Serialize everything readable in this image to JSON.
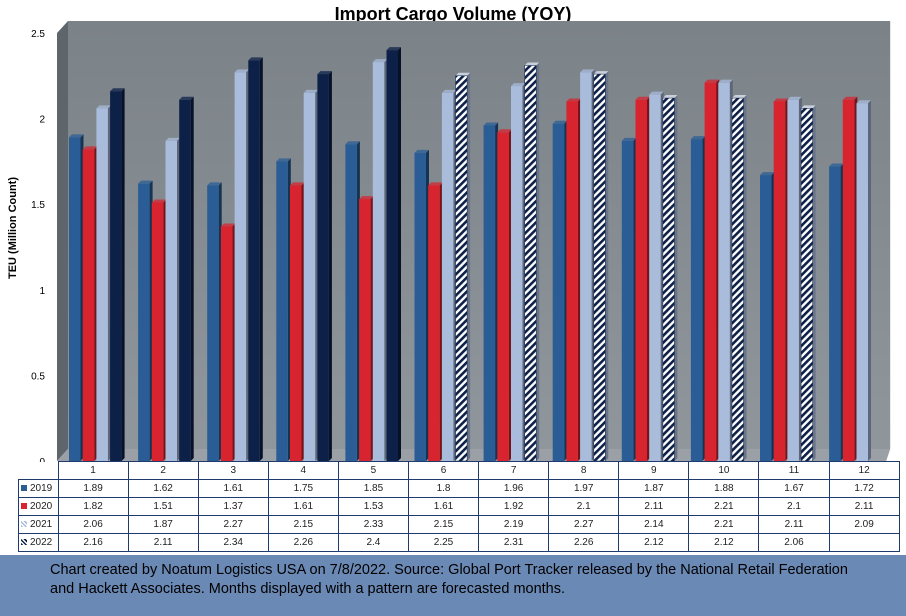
{
  "chart_data": {
    "type": "bar",
    "title": "Import Cargo Volume (YOY)",
    "ylabel": "TEU (Million Count)",
    "xlabel": "",
    "ylim": [
      0,
      2.5
    ],
    "yticks": [
      0,
      0.5,
      1,
      1.5,
      2,
      2.5
    ],
    "categories": [
      "1",
      "2",
      "3",
      "4",
      "5",
      "6",
      "7",
      "8",
      "9",
      "10",
      "11",
      "12"
    ],
    "series": [
      {
        "name": "2019",
        "color": "#2a5d95",
        "values": [
          1.89,
          1.62,
          1.61,
          1.75,
          1.85,
          1.8,
          1.96,
          1.97,
          1.87,
          1.88,
          1.67,
          1.72
        ],
        "forecast_from": null
      },
      {
        "name": "2020",
        "color": "#d7242f",
        "values": [
          1.82,
          1.51,
          1.37,
          1.61,
          1.53,
          1.61,
          1.92,
          2.1,
          2.11,
          2.21,
          2.1,
          2.11
        ],
        "forecast_from": null
      },
      {
        "name": "2021",
        "color": "#a9bcdc",
        "values": [
          2.06,
          1.87,
          2.27,
          2.15,
          2.33,
          2.15,
          2.19,
          2.27,
          2.14,
          2.21,
          2.11,
          2.09
        ],
        "forecast_from": null
      },
      {
        "name": "2022",
        "color": "#0d2048",
        "values": [
          2.16,
          2.11,
          2.34,
          2.26,
          2.4,
          2.25,
          2.31,
          2.26,
          2.12,
          2.12,
          2.06,
          null
        ],
        "forecast_from": 5
      }
    ],
    "grid": false,
    "legend": "data-table"
  },
  "footer": {
    "line1": "Chart created by Noatum Logistics USA on 7/8/2022. Source: Global Port Tracker released by the National Retail Federation",
    "line2": "and Hackett Associates. Months displayed with a pattern are forecasted months."
  }
}
